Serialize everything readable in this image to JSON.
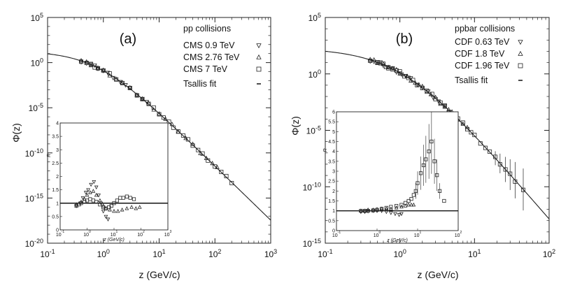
{
  "chart_data": [
    {
      "type": "scatter",
      "panel_label": "(a)",
      "legend_title": "pp collisions",
      "legend_position": "top-right",
      "xlabel": "z (GeV/c)",
      "ylabel": "Φ(z)",
      "xscale": "log",
      "yscale": "log",
      "xlim": [
        0.1,
        1000
      ],
      "ylim": [
        1e-20,
        100000.0
      ],
      "x_ticks": [
        {
          "base": "10",
          "exp": "-1"
        },
        {
          "base": "10",
          "exp": "0"
        },
        {
          "base": "10",
          "exp": "1"
        },
        {
          "base": "10",
          "exp": "2"
        },
        {
          "base": "10",
          "exp": "3"
        }
      ],
      "y_ticks": [
        {
          "base": "10",
          "exp": "-20"
        },
        {
          "base": "10",
          "exp": "-15"
        },
        {
          "base": "10",
          "exp": "-10"
        },
        {
          "base": "10",
          "exp": "-5"
        },
        {
          "base": "10",
          "exp": "0"
        },
        {
          "base": "10",
          "exp": "5"
        }
      ],
      "fit": {
        "name": "Tsallis fit",
        "log10_A": 1.3,
        "q": 1.2,
        "T": 0.15
      },
      "series": [
        {
          "name": "CMS 0.9 TeV",
          "marker": "triangle-down",
          "x": [
            0.4,
            0.5,
            0.6,
            0.7,
            0.8,
            1.0,
            1.2,
            1.5,
            2.0,
            2.5,
            3.0,
            4.0,
            5.0,
            6.0
          ]
        },
        {
          "name": "CMS 2.76 TeV",
          "marker": "triangle-up",
          "x": [
            0.4,
            0.5,
            0.6,
            0.8,
            1.0,
            1.3,
            1.7,
            2.2,
            3.0,
            4.0,
            5.0,
            6.5,
            8.0,
            10.0,
            13.0,
            17.0,
            22.0,
            30.0,
            40.0,
            55.0,
            70.0,
            90.0,
            110.0
          ]
        },
        {
          "name": "CMS 7 TeV",
          "marker": "square",
          "x": [
            0.4,
            0.5,
            0.6,
            0.7,
            0.8,
            1.0,
            1.3,
            1.7,
            2.2,
            3.0,
            4.0,
            5.0,
            6.5,
            8.0,
            10.0,
            12.0,
            15.0,
            18.0,
            22.0,
            27.0,
            33.0,
            40.0,
            50.0,
            60.0,
            75.0,
            100.0,
            130.0,
            160.0,
            200.0
          ]
        }
      ],
      "inset": {
        "ylabel": "R",
        "xlabel": "z (GeV/c)",
        "xlim": [
          0.1,
          1000
        ],
        "ylim": [
          0,
          4
        ],
        "ref_line": 1,
        "y_ticks": [
          "0",
          "0.5",
          "1",
          "1.5",
          "2",
          "2.5",
          "3",
          "3.5",
          "4"
        ],
        "x_ticks": [
          {
            "base": "10",
            "exp": "-1"
          },
          {
            "base": "10",
            "exp": "0"
          },
          {
            "base": "10",
            "exp": "1"
          },
          {
            "base": "10",
            "exp": "2"
          },
          {
            "base": "10",
            "exp": "3"
          }
        ],
        "series": [
          {
            "marker": "triangle-down",
            "points": [
              [
                0.4,
                0.9
              ],
              [
                0.55,
                1.0
              ],
              [
                0.7,
                1.2
              ],
              [
                0.9,
                1.4
              ],
              [
                1.1,
                1.5
              ],
              [
                1.4,
                1.7
              ],
              [
                1.8,
                1.8
              ],
              [
                2.2,
                1.6
              ],
              [
                2.7,
                1.3
              ],
              [
                3.3,
                1.0
              ],
              [
                4.0,
                0.7
              ],
              [
                5.0,
                0.5
              ],
              [
                6.0,
                0.4
              ]
            ]
          },
          {
            "marker": "triangle-up",
            "points": [
              [
                0.4,
                0.95
              ],
              [
                0.6,
                1.05
              ],
              [
                0.8,
                1.15
              ],
              [
                1.0,
                1.3
              ],
              [
                1.3,
                1.4
              ],
              [
                1.7,
                1.45
              ],
              [
                2.2,
                1.3
              ],
              [
                3.0,
                1.1
              ],
              [
                4.0,
                0.9
              ],
              [
                5.0,
                0.8
              ],
              [
                7.0,
                0.75
              ],
              [
                10.0,
                0.7
              ],
              [
                14.0,
                0.7
              ],
              [
                20.0,
                0.75
              ],
              [
                30.0,
                0.8
              ],
              [
                45.0,
                0.85
              ],
              [
                65.0,
                0.8
              ],
              [
                90.0,
                0.85
              ]
            ]
          },
          {
            "marker": "square",
            "points": [
              [
                0.4,
                0.9
              ],
              [
                0.5,
                0.95
              ],
              [
                0.6,
                1.0
              ],
              [
                0.8,
                1.05
              ],
              [
                1.0,
                1.1
              ],
              [
                1.3,
                1.15
              ],
              [
                1.7,
                1.1
              ],
              [
                2.2,
                1.05
              ],
              [
                3.0,
                0.95
              ],
              [
                4.0,
                0.85
              ],
              [
                5.0,
                0.8
              ],
              [
                6.5,
                0.85
              ],
              [
                8.0,
                0.9
              ],
              [
                10.0,
                1.0
              ],
              [
                13.0,
                1.1
              ],
              [
                17.0,
                1.2
              ],
              [
                22.0,
                1.2
              ],
              [
                30.0,
                1.25
              ],
              [
                40.0,
                1.2
              ],
              [
                55.0,
                1.15
              ]
            ]
          }
        ]
      }
    },
    {
      "type": "scatter",
      "panel_label": "(b)",
      "legend_title": "ppbar collisions",
      "legend_position": "top-right",
      "xlabel": "z (GeV/c)",
      "ylabel": "Φ(z)",
      "xscale": "log",
      "yscale": "log",
      "xlim": [
        0.1,
        100
      ],
      "ylim": [
        1e-15,
        100000.0
      ],
      "x_ticks": [
        {
          "base": "10",
          "exp": "-1"
        },
        {
          "base": "10",
          "exp": "0"
        },
        {
          "base": "10",
          "exp": "1"
        },
        {
          "base": "10",
          "exp": "2"
        }
      ],
      "y_ticks": [
        {
          "base": "10",
          "exp": "-15"
        },
        {
          "base": "10",
          "exp": "-10"
        },
        {
          "base": "10",
          "exp": "-5"
        },
        {
          "base": "10",
          "exp": "0"
        },
        {
          "base": "10",
          "exp": "5"
        }
      ],
      "fit": {
        "name": "Tsallis fit",
        "log10_A": 2.3,
        "q": 1.15,
        "T": 0.16
      },
      "series": [
        {
          "name": "CDF 0.63 TeV",
          "marker": "triangle-down",
          "x": [
            0.4,
            0.45,
            0.5,
            0.55,
            0.6,
            0.7,
            0.8,
            0.9,
            1.0,
            1.2,
            1.4,
            1.7,
            2.0,
            2.4,
            2.8,
            3.3,
            4.0
          ]
        },
        {
          "name": "CDF 1.8 TeV",
          "marker": "triangle-up",
          "x": [
            0.4,
            0.45,
            0.5,
            0.55,
            0.6,
            0.65,
            0.7,
            0.8,
            0.9,
            1.0,
            1.1,
            1.25,
            1.4,
            1.6,
            1.8,
            2.0,
            2.3,
            2.6,
            3.0,
            3.5,
            4.0,
            4.5,
            5.0,
            6.0,
            7.0,
            8.0
          ]
        },
        {
          "name": "CDF 1.96 TeV",
          "marker": "square",
          "x": [
            0.4,
            0.5,
            0.6,
            0.7,
            0.8,
            0.9,
            1.0,
            1.15,
            1.3,
            1.5,
            1.7,
            2.0,
            2.3,
            2.7,
            3.0,
            3.5,
            4.0,
            4.6,
            5.3,
            6.0,
            7.0,
            8.0,
            9.0,
            10.0,
            12.0,
            14.0,
            16.0,
            19.0,
            22.0,
            26.0,
            30.0,
            35.0,
            45.0
          ]
        }
      ],
      "inset": {
        "ylabel": "R",
        "xlabel": "z (GeV/c)",
        "xlim": [
          0.1,
          100
        ],
        "ylim": [
          0,
          6
        ],
        "ref_line": 1,
        "y_ticks": [
          "0",
          "0.5",
          "1",
          "1.5",
          "2",
          "2.5",
          "3",
          "3.5",
          "4",
          "4.5",
          "5",
          "5.5",
          "6"
        ],
        "x_ticks": [
          {
            "base": "10",
            "exp": "-1"
          },
          {
            "base": "10",
            "exp": "0"
          },
          {
            "base": "10",
            "exp": "1"
          },
          {
            "base": "10",
            "exp": "2"
          }
        ],
        "series": [
          {
            "marker": "triangle-down",
            "points": [
              [
                0.4,
                0.95
              ],
              [
                0.5,
                0.95
              ],
              [
                0.6,
                0.98
              ],
              [
                0.8,
                1.0
              ],
              [
                1.0,
                1.0
              ],
              [
                1.3,
                1.0
              ],
              [
                1.7,
                0.95
              ],
              [
                2.2,
                0.9
              ],
              [
                2.8,
                0.85
              ],
              [
                3.5,
                0.8
              ],
              [
                4.0,
                0.85
              ]
            ]
          },
          {
            "marker": "triangle-up",
            "points": [
              [
                0.4,
                1.0
              ],
              [
                0.5,
                1.0
              ],
              [
                0.6,
                1.05
              ],
              [
                0.8,
                1.05
              ],
              [
                1.0,
                1.08
              ],
              [
                1.3,
                1.1
              ],
              [
                1.7,
                1.1
              ],
              [
                2.2,
                1.1
              ],
              [
                3.0,
                1.15
              ],
              [
                4.0,
                1.2
              ],
              [
                5.0,
                1.25
              ],
              [
                6.0,
                1.3
              ],
              [
                7.0,
                1.3
              ],
              [
                8.0,
                1.3
              ]
            ]
          },
          {
            "marker": "square",
            "points": [
              [
                0.4,
                1.0
              ],
              [
                0.5,
                1.0
              ],
              [
                0.6,
                1.0
              ],
              [
                0.8,
                1.02
              ],
              [
                1.0,
                1.05
              ],
              [
                1.3,
                1.1
              ],
              [
                1.7,
                1.15
              ],
              [
                2.2,
                1.2
              ],
              [
                3.0,
                1.25
              ],
              [
                4.0,
                1.3
              ],
              [
                5.0,
                1.4
              ],
              [
                6.0,
                1.5
              ],
              [
                7.0,
                1.6
              ],
              [
                8.0,
                1.8
              ],
              [
                9.0,
                2.0
              ],
              [
                10.0,
                2.4
              ],
              [
                12.0,
                2.9
              ],
              [
                14.0,
                3.3
              ],
              [
                16.0,
                3.6
              ],
              [
                19.0,
                4.0
              ],
              [
                22.0,
                4.5
              ],
              [
                26.0,
                3.5
              ],
              [
                30.0,
                2.8
              ],
              [
                35.0,
                2.0
              ],
              [
                45.0,
                1.5
              ]
            ]
          }
        ]
      }
    }
  ]
}
